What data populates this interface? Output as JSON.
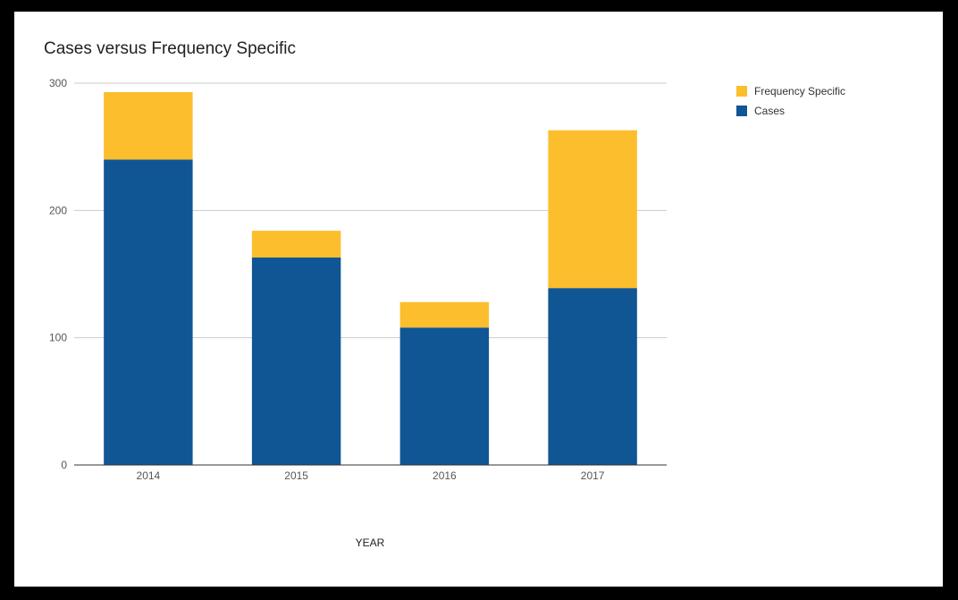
{
  "chart_data": {
    "type": "bar",
    "stacked": true,
    "title": "Cases versus Frequency Specific",
    "xlabel": "YEAR",
    "ylabel": "",
    "categories": [
      "2014",
      "2015",
      "2016",
      "2017"
    ],
    "series": [
      {
        "name": "Cases",
        "color": "#115694",
        "values": [
          240,
          163,
          108,
          139
        ]
      },
      {
        "name": "Frequency Specific",
        "color": "#fcbe2c",
        "values": [
          53,
          21,
          20,
          124
        ]
      }
    ],
    "ylim": [
      0,
      300
    ],
    "yticks": [
      0,
      100,
      200,
      300
    ],
    "grid": true,
    "legend_position": "right"
  },
  "legend": {
    "items": [
      {
        "label": "Frequency Specific",
        "color": "#fcbe2c"
      },
      {
        "label": "Cases",
        "color": "#115694"
      }
    ]
  }
}
